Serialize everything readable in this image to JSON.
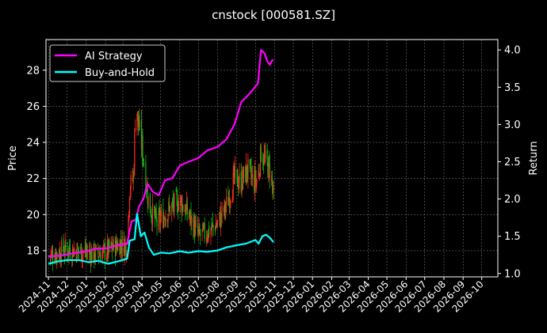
{
  "chart_data": {
    "type": "line",
    "title": "cnstock [000581.SZ]",
    "xlabel": "",
    "ylabel": "Price",
    "y2label": "Return",
    "x_range": [
      "2024-10-28",
      "2026-10-27"
    ],
    "ylim": [
      16.55,
      29.7
    ],
    "y2lim": [
      0.955,
      4.14
    ],
    "y_ticks": [
      "18",
      "20",
      "22",
      "24",
      "26",
      "28"
    ],
    "y2_ticks": [
      "1.0",
      "1.5",
      "2.0",
      "2.5",
      "3.0",
      "3.5",
      "4.0"
    ],
    "x_ticks": [
      "2024-11",
      "2024-12",
      "2025-01",
      "2025-02",
      "2025-03",
      "2025-04",
      "2025-05",
      "2025-06",
      "2025-07",
      "2025-08",
      "2025-09",
      "2025-10",
      "2025-11",
      "2025-12",
      "2026-01",
      "2026-02",
      "2026-03",
      "2026-04",
      "2026-05",
      "2026-06",
      "2026-07",
      "2026-08",
      "2026-09",
      "2026-10"
    ],
    "grid": true,
    "legend_position": "top-left",
    "candle_up_color": "#ff2a1f",
    "candle_down_color": "#12b512",
    "series": [
      {
        "name": "AI Strategy",
        "axis": "right",
        "color": "#ff00ff",
        "points": [
          [
            "2024-11-01",
            1.23
          ],
          [
            "2024-11-20",
            1.24
          ],
          [
            "2024-12-10",
            1.27
          ],
          [
            "2024-12-28",
            1.29
          ],
          [
            "2025-01-15",
            1.33
          ],
          [
            "2025-02-05",
            1.34
          ],
          [
            "2025-02-20",
            1.38
          ],
          [
            "2025-03-08",
            1.4
          ],
          [
            "2025-03-15",
            1.7
          ],
          [
            "2025-03-22",
            1.72
          ],
          [
            "2025-03-27",
            1.9
          ],
          [
            "2025-04-03",
            2.0
          ],
          [
            "2025-04-10",
            2.2
          ],
          [
            "2025-04-18",
            2.1
          ],
          [
            "2025-04-28",
            2.05
          ],
          [
            "2025-05-08",
            2.25
          ],
          [
            "2025-05-20",
            2.28
          ],
          [
            "2025-06-01",
            2.45
          ],
          [
            "2025-06-15",
            2.5
          ],
          [
            "2025-07-01",
            2.55
          ],
          [
            "2025-07-15",
            2.65
          ],
          [
            "2025-08-01",
            2.7
          ],
          [
            "2025-08-15",
            2.8
          ],
          [
            "2025-08-28",
            3.0
          ],
          [
            "2025-09-08",
            3.3
          ],
          [
            "2025-09-20",
            3.4
          ],
          [
            "2025-09-30",
            3.5
          ],
          [
            "2025-10-05",
            3.55
          ],
          [
            "2025-10-10",
            4.0
          ],
          [
            "2025-10-16",
            3.95
          ],
          [
            "2025-10-20",
            3.85
          ],
          [
            "2025-10-24",
            3.8
          ],
          [
            "2025-10-27",
            3.85
          ],
          [
            "2025-10-30",
            3.87
          ]
        ]
      },
      {
        "name": "Buy-and-Hold",
        "axis": "right",
        "color": "#00ffff",
        "points": [
          [
            "2024-11-01",
            1.13
          ],
          [
            "2024-11-15",
            1.16
          ],
          [
            "2024-12-01",
            1.18
          ],
          [
            "2024-12-20",
            1.18
          ],
          [
            "2025-01-05",
            1.15
          ],
          [
            "2025-01-20",
            1.17
          ],
          [
            "2025-02-05",
            1.13
          ],
          [
            "2025-02-25",
            1.17
          ],
          [
            "2025-03-08",
            1.2
          ],
          [
            "2025-03-12",
            1.44
          ],
          [
            "2025-03-20",
            1.46
          ],
          [
            "2025-03-24",
            1.8
          ],
          [
            "2025-03-30",
            1.5
          ],
          [
            "2025-04-05",
            1.55
          ],
          [
            "2025-04-12",
            1.35
          ],
          [
            "2025-04-20",
            1.25
          ],
          [
            "2025-05-01",
            1.28
          ],
          [
            "2025-05-15",
            1.27
          ],
          [
            "2025-06-01",
            1.3
          ],
          [
            "2025-06-15",
            1.28
          ],
          [
            "2025-07-01",
            1.3
          ],
          [
            "2025-07-15",
            1.29
          ],
          [
            "2025-08-01",
            1.31
          ],
          [
            "2025-08-15",
            1.35
          ],
          [
            "2025-09-01",
            1.38
          ],
          [
            "2025-09-15",
            1.4
          ],
          [
            "2025-10-01",
            1.45
          ],
          [
            "2025-10-06",
            1.4
          ],
          [
            "2025-10-12",
            1.5
          ],
          [
            "2025-10-18",
            1.52
          ],
          [
            "2025-10-24",
            1.48
          ],
          [
            "2025-10-30",
            1.42
          ]
        ]
      }
    ],
    "price_range_candles": {
      "from": "2024-11-01",
      "to": "2025-10-30",
      "anchors": [
        [
          "2024-11-01",
          17.7
        ],
        [
          "2024-12-01",
          18.1
        ],
        [
          "2024-12-20",
          18.0
        ],
        [
          "2025-01-15",
          17.8
        ],
        [
          "2025-02-05",
          18.0
        ],
        [
          "2025-02-25",
          18.4
        ],
        [
          "2025-03-08",
          18.3
        ],
        [
          "2025-03-12",
          21.5
        ],
        [
          "2025-03-18",
          22.0
        ],
        [
          "2025-03-22",
          26.5
        ],
        [
          "2025-03-26",
          25.0
        ],
        [
          "2025-04-02",
          23.5
        ],
        [
          "2025-04-12",
          20.5
        ],
        [
          "2025-04-25",
          19.5
        ],
        [
          "2025-05-15",
          20.3
        ],
        [
          "2025-06-01",
          20.8
        ],
        [
          "2025-06-15",
          20.0
        ],
        [
          "2025-07-01",
          18.8
        ],
        [
          "2025-07-15",
          19.0
        ],
        [
          "2025-08-01",
          19.5
        ],
        [
          "2025-08-15",
          20.5
        ],
        [
          "2025-08-28",
          22.0
        ],
        [
          "2025-09-08",
          21.8
        ],
        [
          "2025-09-18",
          22.5
        ],
        [
          "2025-09-28",
          21.8
        ],
        [
          "2025-10-05",
          22.0
        ],
        [
          "2025-10-10",
          23.5
        ],
        [
          "2025-10-18",
          22.8
        ],
        [
          "2025-10-25",
          22.5
        ],
        [
          "2025-10-30",
          21.0
        ]
      ]
    }
  }
}
